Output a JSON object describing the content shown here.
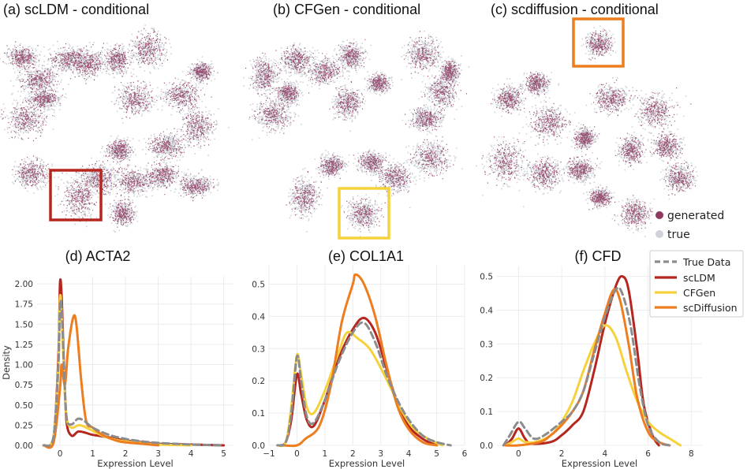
{
  "colors": {
    "generated": "#8e3a5e",
    "true": "#cfd2d9",
    "true_data": "#8c8c8c",
    "scLDM": "#b5261e",
    "CFGen": "#f5d23c",
    "scDiffusion": "#ee7d1f"
  },
  "umap": {
    "titles": [
      "(a) scLDM - conditional",
      "(b) CFGen - conditional",
      "(c) scdiffusion - conditional"
    ],
    "legend": {
      "generated": "generated",
      "true": "true"
    }
  },
  "chart_data": [
    {
      "type": "line",
      "title": "(d) ACTA2",
      "xlabel": "Expression Level",
      "ylabel": "Density",
      "xlim": [
        -0.7,
        5.3
      ],
      "ylim": [
        0,
        2.05
      ],
      "xticks": [
        0,
        1,
        2,
        3,
        4,
        5
      ],
      "yticks": [
        0,
        0.25,
        0.5,
        0.75,
        1.0,
        1.25,
        1.5,
        1.75,
        2.0
      ],
      "ytick_labels": [
        "0.00",
        "0.25",
        "0.50",
        "0.75",
        "1.00",
        "1.25",
        "1.50",
        "1.75",
        "2.00"
      ],
      "grid": true,
      "series": [
        {
          "name": "True Data",
          "style": "dashed",
          "points": [
            [
              -0.5,
              0
            ],
            [
              -0.2,
              0.1
            ],
            [
              -0.05,
              1.0
            ],
            [
              0.0,
              1.72
            ],
            [
              0.05,
              1.7
            ],
            [
              0.12,
              1.0
            ],
            [
              0.2,
              0.35
            ],
            [
              0.35,
              0.26
            ],
            [
              0.55,
              0.33
            ],
            [
              0.75,
              0.3
            ],
            [
              1.0,
              0.22
            ],
            [
              1.5,
              0.13
            ],
            [
              2.0,
              0.08
            ],
            [
              2.5,
              0.05
            ],
            [
              3.0,
              0.03
            ],
            [
              3.5,
              0.02
            ],
            [
              4.0,
              0.01
            ],
            [
              5.0,
              0.0
            ]
          ]
        },
        {
          "name": "scLDM",
          "style": "solid",
          "points": [
            [
              -0.5,
              0
            ],
            [
              -0.2,
              0.1
            ],
            [
              -0.05,
              1.1
            ],
            [
              0.0,
              2.0
            ],
            [
              0.05,
              1.85
            ],
            [
              0.12,
              1.0
            ],
            [
              0.2,
              0.3
            ],
            [
              0.35,
              0.12
            ],
            [
              0.55,
              0.17
            ],
            [
              0.75,
              0.16
            ],
            [
              1.0,
              0.13
            ],
            [
              1.5,
              0.1
            ],
            [
              2.0,
              0.06
            ],
            [
              2.5,
              0.04
            ],
            [
              3.0,
              0.02
            ],
            [
              4.0,
              0.01
            ],
            [
              5.0,
              0.0
            ]
          ]
        },
        {
          "name": "CFGen",
          "style": "solid",
          "points": [
            [
              -0.5,
              0
            ],
            [
              -0.2,
              0.1
            ],
            [
              -0.05,
              1.0
            ],
            [
              0.0,
              1.82
            ],
            [
              0.05,
              1.65
            ],
            [
              0.12,
              0.9
            ],
            [
              0.2,
              0.35
            ],
            [
              0.35,
              0.22
            ],
            [
              0.6,
              0.25
            ],
            [
              0.9,
              0.2
            ],
            [
              1.3,
              0.12
            ],
            [
              1.8,
              0.06
            ],
            [
              2.5,
              0.03
            ],
            [
              3.0,
              0.01
            ],
            [
              4.0,
              0.0
            ]
          ]
        },
        {
          "name": "scDiffusion",
          "style": "solid",
          "points": [
            [
              -0.5,
              0
            ],
            [
              -0.2,
              0.03
            ],
            [
              0.0,
              0.7
            ],
            [
              0.05,
              1.0
            ],
            [
              0.15,
              0.75
            ],
            [
              0.25,
              1.2
            ],
            [
              0.4,
              1.58
            ],
            [
              0.5,
              1.5
            ],
            [
              0.65,
              0.8
            ],
            [
              0.8,
              0.3
            ],
            [
              1.0,
              0.22
            ],
            [
              1.3,
              0.13
            ],
            [
              1.8,
              0.05
            ],
            [
              2.5,
              0.02
            ],
            [
              3.0,
              0.0
            ]
          ]
        }
      ]
    },
    {
      "type": "line",
      "title": "(e) COL1A1",
      "xlabel": "Expression Level",
      "ylabel": "",
      "xlim": [
        -1,
        6
      ],
      "ylim": [
        0,
        0.55
      ],
      "xticks": [
        -1,
        0,
        1,
        2,
        3,
        4,
        5,
        6
      ],
      "yticks": [
        0,
        0.1,
        0.2,
        0.3,
        0.4,
        0.5
      ],
      "ytick_labels": [
        "0.0",
        "0.1",
        "0.2",
        "0.3",
        "0.4",
        "0.5"
      ],
      "grid": true,
      "series": [
        {
          "name": "True Data",
          "style": "dashed",
          "points": [
            [
              -0.7,
              0
            ],
            [
              -0.4,
              0.01
            ],
            [
              -0.2,
              0.1
            ],
            [
              0.0,
              0.275
            ],
            [
              0.15,
              0.2
            ],
            [
              0.35,
              0.09
            ],
            [
              0.6,
              0.07
            ],
            [
              1.0,
              0.14
            ],
            [
              1.5,
              0.26
            ],
            [
              2.0,
              0.35
            ],
            [
              2.4,
              0.38
            ],
            [
              2.8,
              0.32
            ],
            [
              3.2,
              0.22
            ],
            [
              3.6,
              0.14
            ],
            [
              4.0,
              0.08
            ],
            [
              4.5,
              0.03
            ],
            [
              5.0,
              0.01
            ],
            [
              5.5,
              0.0
            ]
          ]
        },
        {
          "name": "scLDM",
          "style": "solid",
          "points": [
            [
              -0.6,
              0
            ],
            [
              -0.4,
              0.01
            ],
            [
              -0.2,
              0.08
            ],
            [
              0.0,
              0.22
            ],
            [
              0.15,
              0.16
            ],
            [
              0.35,
              0.08
            ],
            [
              0.6,
              0.06
            ],
            [
              1.0,
              0.14
            ],
            [
              1.5,
              0.27
            ],
            [
              2.0,
              0.36
            ],
            [
              2.4,
              0.395
            ],
            [
              2.8,
              0.35
            ],
            [
              3.2,
              0.24
            ],
            [
              3.6,
              0.13
            ],
            [
              4.0,
              0.06
            ],
            [
              4.5,
              0.02
            ],
            [
              5.0,
              0.0
            ]
          ]
        },
        {
          "name": "CFGen",
          "style": "solid",
          "points": [
            [
              -0.7,
              0
            ],
            [
              -0.4,
              0.01
            ],
            [
              -0.2,
              0.12
            ],
            [
              0.0,
              0.28
            ],
            [
              0.15,
              0.22
            ],
            [
              0.35,
              0.12
            ],
            [
              0.6,
              0.1
            ],
            [
              1.0,
              0.17
            ],
            [
              1.5,
              0.29
            ],
            [
              1.8,
              0.35
            ],
            [
              2.2,
              0.33
            ],
            [
              2.6,
              0.3
            ],
            [
              3.0,
              0.24
            ],
            [
              3.4,
              0.17
            ],
            [
              3.8,
              0.1
            ],
            [
              4.2,
              0.05
            ],
            [
              4.7,
              0.02
            ],
            [
              5.2,
              0.0
            ]
          ]
        },
        {
          "name": "scDiffusion",
          "style": "solid",
          "points": [
            [
              -0.5,
              0
            ],
            [
              0.0,
              0.0
            ],
            [
              0.3,
              0.02
            ],
            [
              0.8,
              0.06
            ],
            [
              1.2,
              0.18
            ],
            [
              1.6,
              0.38
            ],
            [
              2.0,
              0.5
            ],
            [
              2.1,
              0.53
            ],
            [
              2.4,
              0.5
            ],
            [
              2.8,
              0.4
            ],
            [
              3.2,
              0.25
            ],
            [
              3.6,
              0.12
            ],
            [
              4.0,
              0.05
            ],
            [
              4.5,
              0.01
            ],
            [
              5.0,
              0.0
            ]
          ]
        }
      ]
    },
    {
      "type": "line",
      "title": "(f) CFD",
      "xlabel": "Expression Level",
      "ylabel": "",
      "xlim": [
        -1,
        8.5
      ],
      "ylim": [
        0,
        0.52
      ],
      "xticks": [
        0,
        2,
        4,
        6,
        8
      ],
      "yticks": [
        0,
        0.1,
        0.2,
        0.3,
        0.4,
        0.5
      ],
      "ytick_labels": [
        "0.0",
        "0.1",
        "0.2",
        "0.3",
        "0.4",
        "0.5"
      ],
      "grid": true,
      "series": [
        {
          "name": "True Data",
          "style": "dashed",
          "points": [
            [
              -0.7,
              0
            ],
            [
              -0.4,
              0.03
            ],
            [
              0.0,
              0.07
            ],
            [
              0.3,
              0.05
            ],
            [
              0.7,
              0.02
            ],
            [
              1.2,
              0.03
            ],
            [
              2.0,
              0.07
            ],
            [
              2.5,
              0.1
            ],
            [
              3.0,
              0.16
            ],
            [
              3.5,
              0.27
            ],
            [
              4.0,
              0.38
            ],
            [
              4.5,
              0.46
            ],
            [
              4.8,
              0.45
            ],
            [
              5.2,
              0.35
            ],
            [
              5.6,
              0.18
            ],
            [
              6.0,
              0.06
            ],
            [
              6.5,
              0.01
            ],
            [
              7.0,
              0.0
            ]
          ]
        },
        {
          "name": "scLDM",
          "style": "solid",
          "points": [
            [
              -0.6,
              0
            ],
            [
              -0.3,
              0.02
            ],
            [
              0.0,
              0.05
            ],
            [
              0.3,
              0.02
            ],
            [
              0.6,
              0.005
            ],
            [
              1.5,
              0.01
            ],
            [
              2.0,
              0.03
            ],
            [
              2.5,
              0.06
            ],
            [
              3.0,
              0.1
            ],
            [
              3.5,
              0.22
            ],
            [
              4.0,
              0.36
            ],
            [
              4.5,
              0.47
            ],
            [
              4.8,
              0.5
            ],
            [
              5.1,
              0.46
            ],
            [
              5.5,
              0.28
            ],
            [
              5.8,
              0.12
            ],
            [
              6.2,
              0.03
            ],
            [
              6.5,
              0.0
            ]
          ]
        },
        {
          "name": "CFGen",
          "style": "solid",
          "points": [
            [
              -0.6,
              0
            ],
            [
              -0.3,
              0.01
            ],
            [
              0.0,
              0.02
            ],
            [
              0.3,
              0.01
            ],
            [
              0.8,
              0.01
            ],
            [
              1.5,
              0.03
            ],
            [
              2.0,
              0.07
            ],
            [
              2.5,
              0.13
            ],
            [
              3.0,
              0.22
            ],
            [
              3.5,
              0.3
            ],
            [
              4.0,
              0.355
            ],
            [
              4.5,
              0.32
            ],
            [
              5.0,
              0.22
            ],
            [
              5.5,
              0.13
            ],
            [
              6.0,
              0.07
            ],
            [
              6.5,
              0.04
            ],
            [
              7.0,
              0.02
            ],
            [
              7.5,
              0.0
            ]
          ]
        },
        {
          "name": "scDiffusion",
          "style": "solid",
          "points": [
            [
              -0.6,
              0
            ],
            [
              0.0,
              0.0
            ],
            [
              1.0,
              0.01
            ],
            [
              1.5,
              0.03
            ],
            [
              2.0,
              0.06
            ],
            [
              2.5,
              0.1
            ],
            [
              3.0,
              0.16
            ],
            [
              3.5,
              0.28
            ],
            [
              4.0,
              0.39
            ],
            [
              4.4,
              0.46
            ],
            [
              4.7,
              0.43
            ],
            [
              5.1,
              0.3
            ],
            [
              5.5,
              0.14
            ],
            [
              6.0,
              0.04
            ],
            [
              6.5,
              0.01
            ],
            [
              7.0,
              0.0
            ]
          ]
        }
      ]
    }
  ],
  "legend_entries": [
    "True Data",
    "scLDM",
    "CFGen",
    "scDiffusion"
  ]
}
